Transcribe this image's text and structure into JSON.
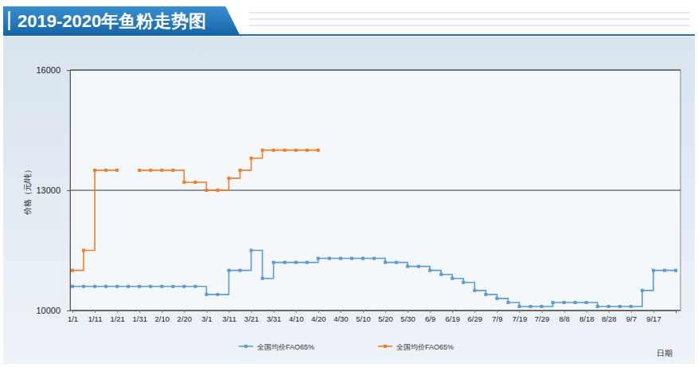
{
  "chart_data": {
    "type": "line",
    "title": "2019-2020年鱼粉走势图",
    "x_label": "日期",
    "y_label": "价格（元/吨）",
    "categories": [
      "1/1",
      null,
      "1/11",
      null,
      "1/21",
      null,
      "1/31",
      null,
      "2/10",
      null,
      "2/20",
      null,
      "3/1",
      null,
      "3/11",
      null,
      "3/21",
      null,
      "3/31",
      null,
      "4/10",
      null,
      "4/20",
      null,
      "4/30",
      null,
      "5/10",
      null,
      "5/20",
      null,
      "5/30",
      null,
      "6/9",
      null,
      "6/19",
      null,
      "6/29",
      null,
      "7/9",
      null,
      "7/19",
      null,
      "7/29",
      null,
      "8/8",
      null,
      "8/18",
      null,
      "8/28",
      null,
      "9/7",
      null,
      "9/17",
      null,
      null
    ],
    "series": [
      {
        "name": "全国均价FAO65%",
        "color": "#5b9bd5",
        "marker": "square",
        "line_style": "solid",
        "values": [
          10600,
          10600,
          10600,
          10600,
          10600,
          10600,
          10600,
          10600,
          10600,
          10600,
          10600,
          10600,
          10400,
          10400,
          11000,
          11000,
          11500,
          10800,
          11200,
          11200,
          11200,
          11200,
          11300,
          11300,
          11300,
          11300,
          11300,
          11300,
          11200,
          11200,
          11100,
          11100,
          11000,
          10900,
          10800,
          10700,
          10500,
          10400,
          10300,
          10200,
          10100,
          10100,
          10100,
          10200,
          10200,
          10200,
          10200,
          10100,
          10100,
          10100,
          10100,
          10500,
          11000,
          11000,
          11000
        ]
      },
      {
        "name": "全国均价FAO65%",
        "color": "#f07d2a",
        "marker": "square",
        "line_style": "solid",
        "values": [
          11000,
          11500,
          13500,
          13500,
          13500,
          null,
          13500,
          13500,
          13500,
          13500,
          13200,
          13200,
          13000,
          13000,
          13300,
          13500,
          13800,
          14000,
          14000,
          14000,
          14000,
          14000,
          14000,
          null,
          null,
          null,
          null,
          null,
          null,
          null,
          null,
          null,
          null,
          null,
          null,
          null,
          null,
          null,
          null,
          null,
          null,
          null,
          null,
          null,
          null,
          null,
          null,
          null,
          null,
          null,
          null,
          null,
          null,
          null,
          null
        ]
      }
    ],
    "ylim": [
      10000,
      16000
    ],
    "yticks": [
      10000,
      13000,
      16000
    ],
    "grid": true,
    "legend": "bottom"
  }
}
